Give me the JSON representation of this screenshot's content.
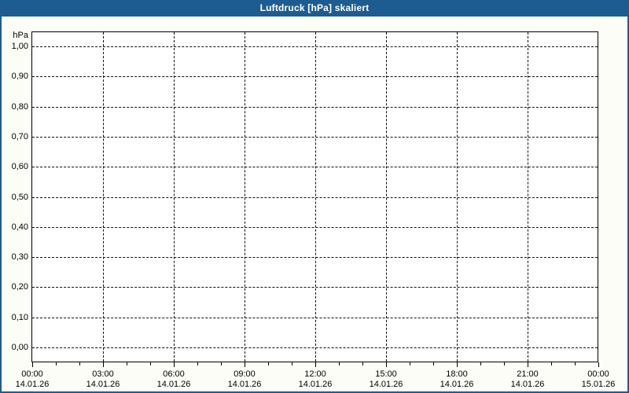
{
  "window": {
    "title": "Luftdruck [hPa] skaliert"
  },
  "colors": {
    "titlebar_bg": "#1d5c90",
    "titlebar_text": "#ffffff",
    "outer_border": "#1d5c90",
    "plot_border": "#000000",
    "grid": "#111111",
    "label_text": "#000000",
    "plot_bg": "#ffffff",
    "page_bg": "#fdfdf8"
  },
  "chart_data": {
    "type": "line",
    "title": "Luftdruck [hPa] skaliert",
    "ylabel": "hPa",
    "ylim": [
      0.0,
      1.0
    ],
    "y_tick_step": 0.1,
    "y_ticks": [
      "1,00",
      "0,90",
      "0,80",
      "0,70",
      "0,60",
      "0,50",
      "0,40",
      "0,30",
      "0,20",
      "0,10",
      "0,00"
    ],
    "x_ticks": [
      {
        "time": "00:00",
        "date": "14.01.26"
      },
      {
        "time": "03:00",
        "date": "14.01.26"
      },
      {
        "time": "06:00",
        "date": "14.01.26"
      },
      {
        "time": "09:00",
        "date": "14.01.26"
      },
      {
        "time": "12:00",
        "date": "14.01.26"
      },
      {
        "time": "15:00",
        "date": "14.01.26"
      },
      {
        "time": "18:00",
        "date": "14.01.26"
      },
      {
        "time": "21:00",
        "date": "14.01.26"
      },
      {
        "time": "00:00",
        "date": "15.01.26"
      }
    ],
    "x_minor_ticks_per_major": 3,
    "grid": "dashed",
    "legend": "none",
    "series": []
  }
}
